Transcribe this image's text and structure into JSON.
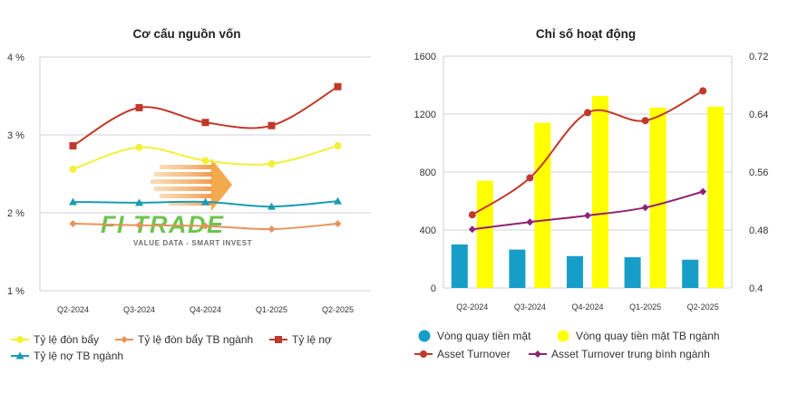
{
  "watermark": {
    "brand": "FI TRADE",
    "tagline": "VALUE DATA - SMART INVEST"
  },
  "chart_data": [
    {
      "type": "line",
      "title": "Cơ cấu nguồn vốn",
      "categories": [
        "Q2-2024",
        "Q3-2024",
        "Q4-2024",
        "Q1-2025",
        "Q2-2025"
      ],
      "ylim": [
        1,
        4
      ],
      "yticks": [
        1,
        2,
        3,
        4
      ],
      "ytick_labels": [
        "1 %",
        "2 %",
        "3 %",
        "4 %"
      ],
      "grid": true,
      "series": [
        {
          "name": "Tỷ lệ đòn bẩy",
          "values": [
            2.56,
            2.84,
            2.67,
            2.63,
            2.86
          ],
          "color": "#f3f03a",
          "marker": "circle"
        },
        {
          "name": "Tỷ lệ đòn bẩy TB ngành",
          "values": [
            1.86,
            1.84,
            1.83,
            1.79,
            1.86
          ],
          "color": "#e8935a",
          "marker": "diamond"
        },
        {
          "name": "Tỷ lệ nợ",
          "values": [
            2.86,
            3.35,
            3.16,
            3.12,
            3.62
          ],
          "color": "#c0392b",
          "marker": "square"
        },
        {
          "name": "Tỷ lệ nợ TB ngành",
          "values": [
            2.14,
            2.13,
            2.14,
            2.08,
            2.15
          ],
          "color": "#1a9bb4",
          "marker": "triangle"
        }
      ],
      "legend_position": "bottom"
    },
    {
      "type": "bar+line",
      "title": "Chỉ số hoạt động",
      "categories": [
        "Q2-2024",
        "Q3-2024",
        "Q4-2024",
        "Q1-2025",
        "Q2-2025"
      ],
      "ylim_left": [
        0,
        1600
      ],
      "yticks_left": [
        "0",
        "400",
        "800",
        "1200",
        "1600"
      ],
      "ylim_right": [
        0.4,
        0.72
      ],
      "yticks_right": [
        "0.4",
        "0.48",
        "0.56",
        "0.64",
        "0.72"
      ],
      "grid": true,
      "bars": [
        {
          "name": "Vòng quay tiền mặt",
          "values": [
            300,
            265,
            220,
            212,
            195
          ],
          "color": "#169ec8",
          "axis": "left"
        },
        {
          "name": "Vòng quay tiền mặt TB ngành",
          "values": [
            740,
            1140,
            1325,
            1245,
            1252
          ],
          "color": "#ffff00",
          "axis": "left"
        }
      ],
      "lines": [
        {
          "name": "Asset Turnover",
          "values": [
            0.501,
            0.552,
            0.642,
            0.631,
            0.672
          ],
          "color": "#c0392b",
          "marker": "circle",
          "axis": "right"
        },
        {
          "name": "Asset Turnover trung bình ngành",
          "values": [
            0.481,
            0.491,
            0.5,
            0.511,
            0.533
          ],
          "color": "#8e2472",
          "marker": "diamond",
          "axis": "right"
        }
      ],
      "legend_position": "bottom"
    }
  ]
}
